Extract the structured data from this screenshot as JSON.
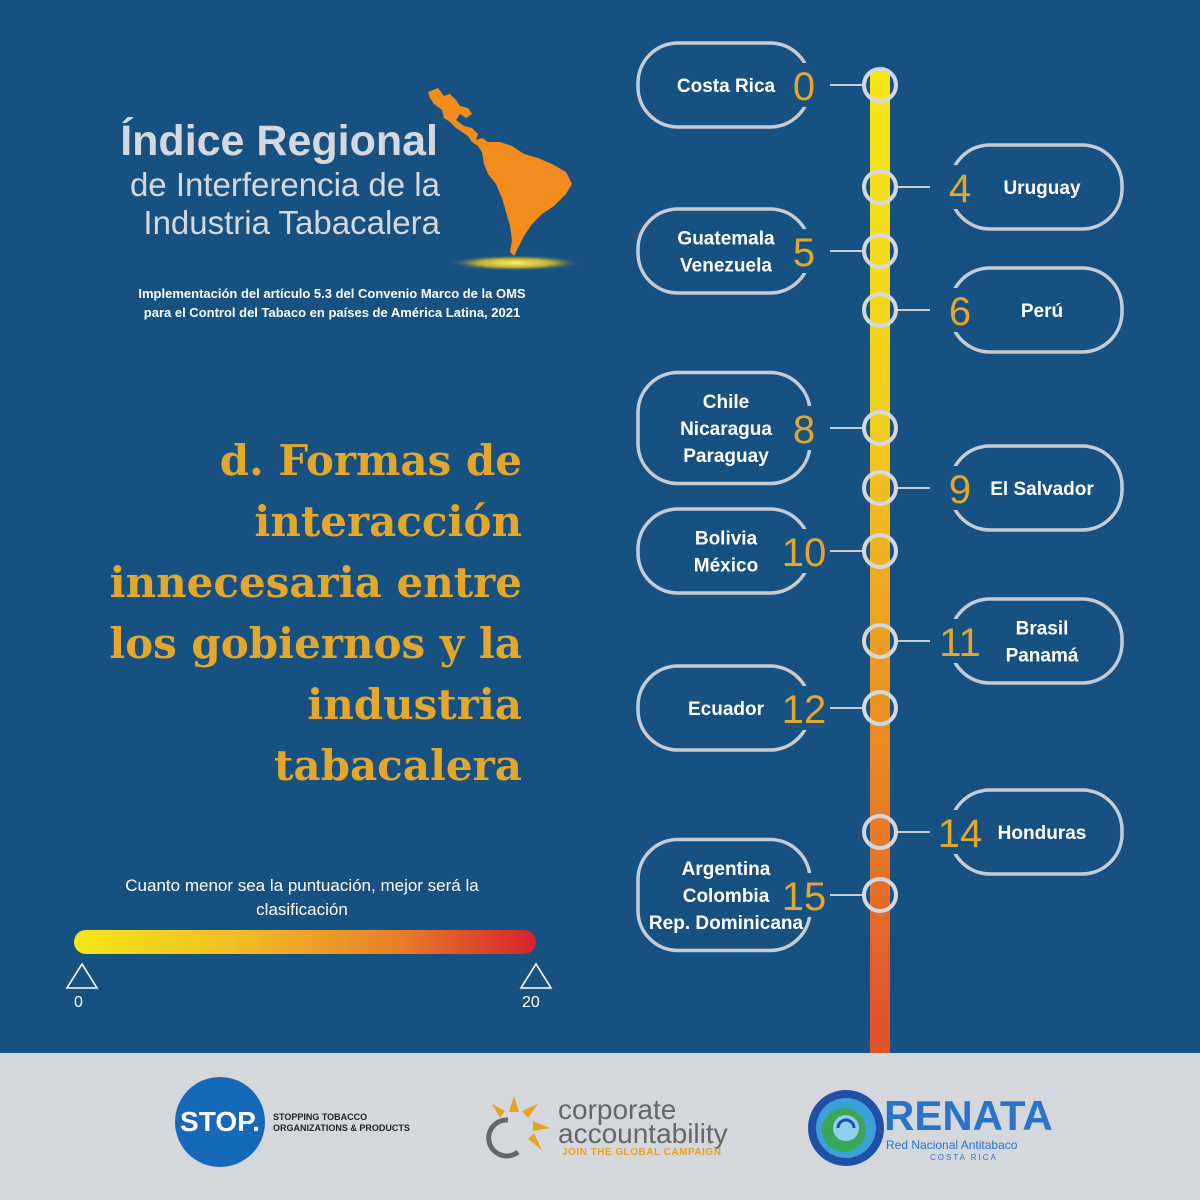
{
  "header": {
    "title_line1": "Índice Regional",
    "title_line2": "de Interferencia de la",
    "title_line3": "Industria Tabacalera",
    "subtitle_line1": "Implementación del artículo 5.3 del Convenio Marco de la OMS",
    "subtitle_line2": "para el Control del Tabaco en países de América Latina, 2021"
  },
  "section": {
    "heading_lines": [
      "d. Formas de",
      "interacción",
      "innecesaria entre",
      "los gobiernos y la",
      "industria",
      "tabacalera"
    ]
  },
  "scale": {
    "note": "Cuanto menor sea la puntuación, mejor será la clasificación",
    "min_label": "0",
    "max_label": "20"
  },
  "timeline": [
    {
      "score": "0",
      "side": "left",
      "countries": [
        "Costa Rica"
      ]
    },
    {
      "score": "4",
      "side": "right",
      "countries": [
        "Uruguay"
      ]
    },
    {
      "score": "5",
      "side": "left",
      "countries": [
        "Guatemala",
        "Venezuela"
      ]
    },
    {
      "score": "6",
      "side": "right",
      "countries": [
        "Perú"
      ]
    },
    {
      "score": "8",
      "side": "left",
      "countries": [
        "Chile",
        "Nicaragua",
        "Paraguay"
      ]
    },
    {
      "score": "9",
      "side": "right",
      "countries": [
        "El Salvador"
      ]
    },
    {
      "score": "10",
      "side": "left",
      "countries": [
        "Bolivia",
        "México"
      ]
    },
    {
      "score": "11",
      "side": "right",
      "countries": [
        "Brasil",
        "Panamá"
      ]
    },
    {
      "score": "12",
      "side": "left",
      "countries": [
        "Ecuador"
      ]
    },
    {
      "score": "14",
      "side": "right",
      "countries": [
        "Honduras"
      ]
    },
    {
      "score": "15",
      "side": "left",
      "countries": [
        "Argentina",
        "Colombia",
        "Rep. Dominicana"
      ]
    }
  ],
  "footer": {
    "stop": {
      "circle": "STOP.",
      "line1": "STOPPING TOBACCO",
      "line2": "ORGANIZATIONS & PRODUCTS"
    },
    "ca": {
      "line1": "corporate",
      "line2": "accountability",
      "tagline": "JOIN THE GLOBAL CAMPAIGN"
    },
    "renata": {
      "name": "RENATA",
      "line1": "Red Nacional Antitabaco",
      "line2": "COSTA RICA"
    }
  },
  "colors": {
    "background": "#175182",
    "accent": "#e3a82b",
    "map": "#f28c1c",
    "footer": "#d4d8dd"
  }
}
